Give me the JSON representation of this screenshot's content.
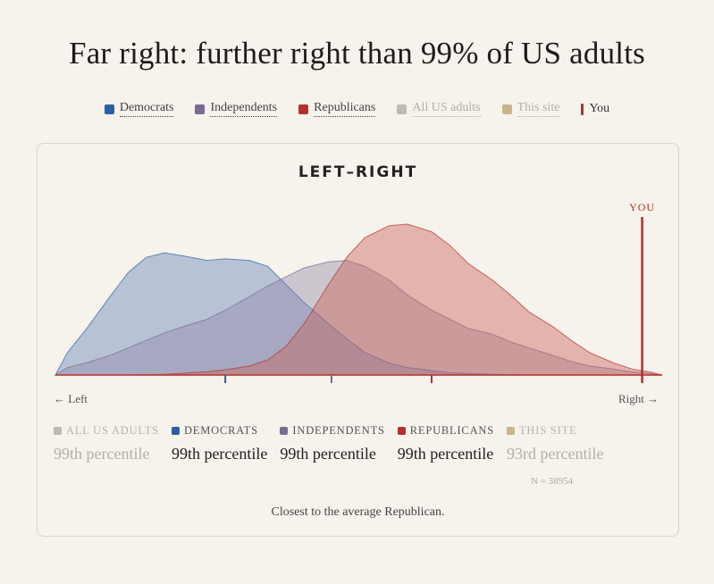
{
  "page": {
    "title": "Far right: further right than 99% of US adults"
  },
  "legend": [
    {
      "key": "democrats",
      "label": "Democrats",
      "color": "#2c5ea8",
      "muted": false
    },
    {
      "key": "independents",
      "label": "Independents",
      "color": "#7a6a92",
      "muted": false
    },
    {
      "key": "republicans",
      "label": "Republicans",
      "color": "#b5302a",
      "muted": false
    },
    {
      "key": "all",
      "label": "All US adults",
      "color": "#bdbab4",
      "muted": true
    },
    {
      "key": "site",
      "label": "This site",
      "color": "#c9b58a",
      "muted": true
    },
    {
      "key": "you",
      "label": "You",
      "color": "#a8342b",
      "muted": false
    }
  ],
  "card": {
    "title": "LEFT–RIGHT",
    "axis_left": "← Left",
    "axis_right": "Right →",
    "you_label": "YOU",
    "n_note": "N = 38954",
    "closest": "Closest to the average Republican."
  },
  "percentiles": [
    {
      "key": "all",
      "label": "ALL US ADULTS",
      "value": "99th percentile",
      "color": "#bdbab4",
      "muted": true
    },
    {
      "key": "democrats",
      "label": "DEMOCRATS",
      "value": "99th percentile",
      "color": "#2c5ea8",
      "muted": false
    },
    {
      "key": "independents",
      "label": "INDEPENDENTS",
      "value": "99th percentile",
      "color": "#7a6a92",
      "muted": false
    },
    {
      "key": "republicans",
      "label": "REPUBLICANS",
      "value": "99th percentile",
      "color": "#b5302a",
      "muted": false
    },
    {
      "key": "site",
      "label": "THIS SITE",
      "value": "93rd percentile",
      "color": "#c9b58a",
      "muted": true
    }
  ],
  "chart_data": {
    "type": "area",
    "title": "LEFT–RIGHT",
    "xlabel": "",
    "ylabel": "",
    "xlim": [
      0,
      1
    ],
    "ylim": [
      0,
      1
    ],
    "grid": false,
    "x": [
      0,
      0.02,
      0.05,
      0.09,
      0.12,
      0.15,
      0.18,
      0.21,
      0.25,
      0.28,
      0.32,
      0.35,
      0.38,
      0.41,
      0.45,
      0.48,
      0.51,
      0.55,
      0.58,
      0.62,
      0.65,
      0.68,
      0.72,
      0.75,
      0.78,
      0.82,
      0.85,
      0.88,
      0.92,
      0.95,
      0.98,
      1
    ],
    "series": [
      {
        "name": "Democrats",
        "color": "#2c5ea8",
        "values": [
          0,
          0.15,
          0.3,
          0.52,
          0.68,
          0.78,
          0.81,
          0.79,
          0.76,
          0.77,
          0.76,
          0.72,
          0.6,
          0.48,
          0.34,
          0.24,
          0.15,
          0.08,
          0.05,
          0.03,
          0.015,
          0.01,
          0.005,
          0.003,
          0.002,
          0.001,
          0.001,
          0,
          0,
          0,
          0,
          0
        ]
      },
      {
        "name": "Independents",
        "color": "#7a6a92",
        "values": [
          0,
          0.05,
          0.08,
          0.13,
          0.18,
          0.23,
          0.28,
          0.32,
          0.37,
          0.43,
          0.52,
          0.59,
          0.65,
          0.71,
          0.75,
          0.76,
          0.72,
          0.63,
          0.53,
          0.43,
          0.37,
          0.31,
          0.27,
          0.22,
          0.18,
          0.13,
          0.09,
          0.06,
          0.04,
          0.02,
          0.01,
          0
        ]
      },
      {
        "name": "Republicans",
        "color": "#b5302a",
        "values": [
          0,
          0,
          0,
          0,
          0,
          0.002,
          0.005,
          0.012,
          0.022,
          0.035,
          0.06,
          0.1,
          0.19,
          0.34,
          0.6,
          0.78,
          0.91,
          0.99,
          1.0,
          0.95,
          0.86,
          0.74,
          0.63,
          0.53,
          0.42,
          0.32,
          0.23,
          0.15,
          0.08,
          0.04,
          0.02,
          0
        ]
      }
    ],
    "group_means": [
      {
        "name": "Democrats",
        "x": 0.28
      },
      {
        "name": "Independents",
        "x": 0.455
      },
      {
        "name": "Republicans",
        "x": 0.62
      }
    ],
    "you_x": 0.967
  }
}
